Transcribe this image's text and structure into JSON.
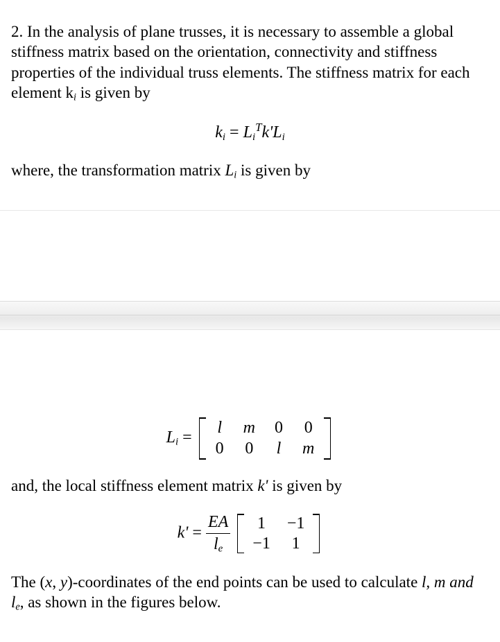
{
  "intro": "2. In the analysis of plane trusses, it is necessary to assemble a global stiffness matrix based on the orientation, connectivity and stiffness properties of the individual truss elements. The stiffness matrix for each element k",
  "intro_sub": "i",
  "intro_tail": " is given by",
  "eq1": {
    "lhs_k": "k",
    "lhs_sub": "i",
    "rhs_L": "L",
    "rhs_L_sub": "i",
    "rhs_L_sup": "T",
    "rhs_kprime": "k'",
    "rhs_L2": "L",
    "rhs_L2_sub": "i"
  },
  "line2_a": "where, the transformation matrix ",
  "line2_L": "L",
  "line2_sub": "i",
  "line2_b": " is given by",
  "Lmatrix": {
    "lhs_L": "L",
    "lhs_sub": "i",
    "rows": [
      [
        "l",
        "m",
        "0",
        "0"
      ],
      [
        "0",
        "0",
        "l",
        "m"
      ]
    ],
    "rows_style": [
      [
        "ital",
        "ital",
        "num0",
        "num0"
      ],
      [
        "num0",
        "num0",
        "ital",
        "ital"
      ]
    ]
  },
  "line3": "and, the local stiffness element matrix ",
  "line3_k": "k'",
  "line3_b": " is given by",
  "kprime": {
    "lhs": "k'",
    "frac_num": "EA",
    "frac_den_l": "l",
    "frac_den_sub": "e",
    "rows": [
      [
        "1",
        "−1"
      ],
      [
        "−1",
        "1"
      ]
    ]
  },
  "outro_a": "The (",
  "outro_x": "x",
  "outro_mid1": ", ",
  "outro_y": "y",
  "outro_b": ")-coordinates of the end points can be used to calculate ",
  "outro_lm": "l, m and l",
  "outro_sub": "e",
  "outro_tail": ", as shown in the figures below.",
  "eq_sign": " = "
}
